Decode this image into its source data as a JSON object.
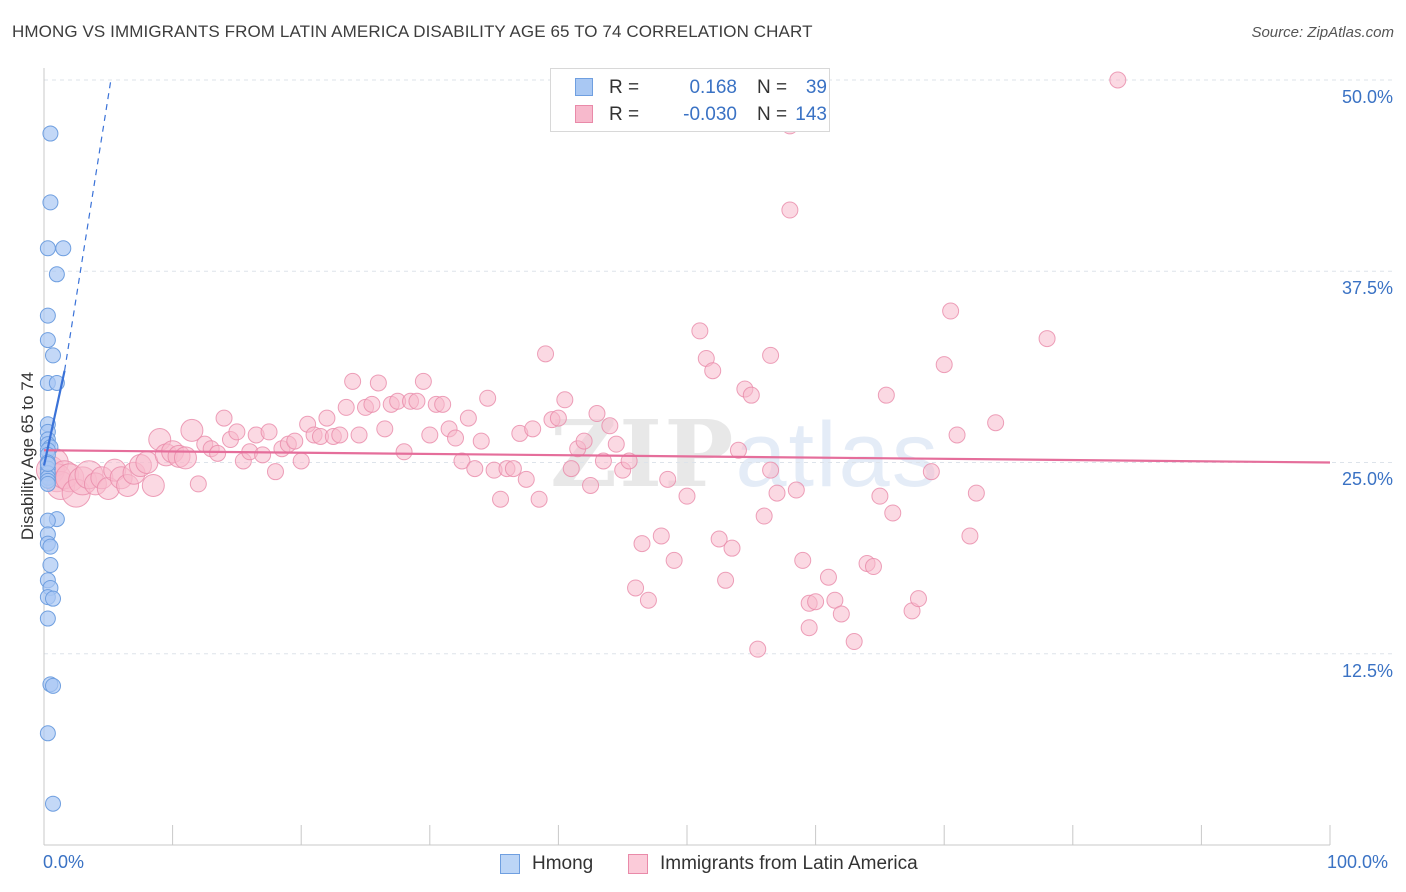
{
  "title": "HMONG VS IMMIGRANTS FROM LATIN AMERICA DISABILITY AGE 65 TO 74 CORRELATION CHART",
  "source": "Source: ZipAtlas.com",
  "watermark": {
    "zip": "ZIP",
    "atlas": "atlas"
  },
  "legend_top": {
    "rows": [
      {
        "r_label": "R =",
        "r_value": "0.168",
        "n_label": "N =",
        "n_value": "39"
      },
      {
        "r_label": "R =",
        "r_value": "-0.030",
        "n_label": "N =",
        "n_value": "143"
      }
    ]
  },
  "legend_bottom": {
    "series1": "Hmong",
    "series2": "Immigrants from Latin America"
  },
  "x_ticks": {
    "left": "0.0%",
    "right": "100.0%"
  },
  "y_ticks": [
    "50.0%",
    "37.5%",
    "25.0%",
    "12.5%"
  ],
  "colors": {
    "hmong_fill": "#a9c8f3",
    "hmong_stroke": "#6f9fe0",
    "hmong_line": "#3a72d8",
    "latin_fill": "#f7b9cc",
    "latin_stroke": "#e98aa9",
    "latin_line": "#e56e9b",
    "grid": "#dde3ea",
    "accent": "#3a72c4"
  },
  "chart_data": {
    "type": "scatter",
    "title": "HMONG VS IMMIGRANTS FROM LATIN AMERICA DISABILITY AGE 65 TO 74 CORRELATION CHART",
    "xlabel": "",
    "ylabel": "Disability Age 65 to 74",
    "xlim": [
      0,
      100
    ],
    "ylim": [
      0,
      52.5
    ],
    "y_gridlines": [
      12.5,
      25.0,
      37.5,
      50.0
    ],
    "series": [
      {
        "name": "Hmong",
        "r": 0.168,
        "n": 39,
        "trend": {
          "x0": 0,
          "y0": 24.8,
          "x1": 1.6,
          "y1": 31.0,
          "dashed_to_x": 5.2,
          "dashed_to_y": 50.0
        },
        "points": [
          [
            0.5,
            46.5
          ],
          [
            0.5,
            42.0
          ],
          [
            0.3,
            39.0
          ],
          [
            1.5,
            39.0
          ],
          [
            1.0,
            37.3
          ],
          [
            0.3,
            34.6
          ],
          [
            0.3,
            33.0
          ],
          [
            0.7,
            32.0
          ],
          [
            0.3,
            30.2
          ],
          [
            1.0,
            30.2
          ],
          [
            0.3,
            27.5
          ],
          [
            0.3,
            27.0
          ],
          [
            0.3,
            26.5
          ],
          [
            0.3,
            26.2
          ],
          [
            0.5,
            26.0
          ],
          [
            0.3,
            25.8
          ],
          [
            0.3,
            25.5
          ],
          [
            0.3,
            25.0
          ],
          [
            0.3,
            24.6
          ],
          [
            0.3,
            24.3
          ],
          [
            0.3,
            24.0
          ],
          [
            0.3,
            23.8
          ],
          [
            1.0,
            21.3
          ],
          [
            0.3,
            21.2
          ],
          [
            0.3,
            20.3
          ],
          [
            0.3,
            19.7
          ],
          [
            0.5,
            19.5
          ],
          [
            0.5,
            18.3
          ],
          [
            0.3,
            17.3
          ],
          [
            0.5,
            16.8
          ],
          [
            0.3,
            16.2
          ],
          [
            0.7,
            16.1
          ],
          [
            0.3,
            14.8
          ],
          [
            0.5,
            10.5
          ],
          [
            0.7,
            10.4
          ],
          [
            0.3,
            7.3
          ],
          [
            0.7,
            2.7
          ],
          [
            0.3,
            23.6
          ],
          [
            0.3,
            24.9
          ]
        ]
      },
      {
        "name": "Immigrants from Latin America",
        "r": -0.03,
        "n": 143,
        "trend": {
          "x0": 0,
          "y0": 25.8,
          "x1": 100,
          "y1": 25.0
        },
        "points": [
          [
            0.5,
            24.5
          ],
          [
            0.8,
            25.0
          ],
          [
            1.0,
            24.0
          ],
          [
            1.3,
            23.5
          ],
          [
            1.6,
            24.2
          ],
          [
            2.0,
            24.0
          ],
          [
            2.5,
            23.0
          ],
          [
            3.0,
            23.8
          ],
          [
            3.5,
            24.2
          ],
          [
            4.0,
            23.6
          ],
          [
            4.5,
            24.0
          ],
          [
            5.0,
            23.3
          ],
          [
            5.5,
            24.5
          ],
          [
            6.0,
            24.0
          ],
          [
            6.5,
            23.5
          ],
          [
            7.0,
            24.3
          ],
          [
            7.5,
            24.8
          ],
          [
            8.0,
            25.0
          ],
          [
            8.5,
            23.5
          ],
          [
            9.0,
            26.5
          ],
          [
            9.5,
            25.5
          ],
          [
            10.0,
            25.7
          ],
          [
            10.5,
            25.4
          ],
          [
            11.0,
            25.3
          ],
          [
            11.5,
            27.1
          ],
          [
            12.0,
            23.6
          ],
          [
            12.5,
            26.2
          ],
          [
            13.0,
            25.9
          ],
          [
            13.5,
            25.6
          ],
          [
            14.0,
            27.9
          ],
          [
            14.5,
            26.5
          ],
          [
            15.0,
            27.0
          ],
          [
            15.5,
            25.1
          ],
          [
            16.0,
            25.7
          ],
          [
            16.5,
            26.8
          ],
          [
            17.0,
            25.5
          ],
          [
            17.5,
            27.0
          ],
          [
            18.0,
            24.4
          ],
          [
            18.5,
            25.9
          ],
          [
            19.0,
            26.2
          ],
          [
            19.5,
            26.4
          ],
          [
            20.0,
            25.1
          ],
          [
            20.5,
            27.5
          ],
          [
            21.0,
            26.8
          ],
          [
            21.5,
            26.7
          ],
          [
            22.0,
            27.9
          ],
          [
            22.5,
            26.7
          ],
          [
            23.0,
            26.8
          ],
          [
            23.5,
            28.6
          ],
          [
            24.0,
            30.3
          ],
          [
            24.5,
            26.8
          ],
          [
            25.0,
            28.6
          ],
          [
            25.5,
            28.8
          ],
          [
            26.0,
            30.2
          ],
          [
            26.5,
            27.2
          ],
          [
            27.0,
            28.8
          ],
          [
            27.5,
            29.0
          ],
          [
            28.0,
            25.7
          ],
          [
            28.5,
            29.0
          ],
          [
            29.0,
            29.0
          ],
          [
            29.5,
            30.3
          ],
          [
            30.0,
            26.8
          ],
          [
            30.5,
            28.8
          ],
          [
            31.0,
            28.8
          ],
          [
            31.5,
            27.2
          ],
          [
            32.0,
            26.6
          ],
          [
            32.5,
            25.1
          ],
          [
            33.0,
            27.9
          ],
          [
            33.5,
            24.6
          ],
          [
            34.0,
            26.4
          ],
          [
            34.5,
            29.2
          ],
          [
            35.0,
            24.5
          ],
          [
            35.5,
            22.6
          ],
          [
            36.0,
            24.6
          ],
          [
            36.5,
            24.6
          ],
          [
            37.0,
            26.9
          ],
          [
            37.5,
            23.9
          ],
          [
            38.0,
            27.2
          ],
          [
            38.5,
            22.6
          ],
          [
            39.0,
            32.1
          ],
          [
            39.5,
            27.8
          ],
          [
            40.0,
            27.9
          ],
          [
            40.5,
            29.1
          ],
          [
            41.0,
            24.6
          ],
          [
            41.5,
            25.9
          ],
          [
            42.0,
            26.4
          ],
          [
            42.5,
            23.5
          ],
          [
            43.0,
            28.2
          ],
          [
            43.5,
            25.1
          ],
          [
            44.0,
            27.4
          ],
          [
            44.5,
            26.2
          ],
          [
            45.0,
            24.5
          ],
          [
            45.5,
            25.1
          ],
          [
            46.0,
            16.8
          ],
          [
            46.5,
            19.7
          ],
          [
            47.0,
            16.0
          ],
          [
            48.0,
            20.2
          ],
          [
            48.5,
            23.9
          ],
          [
            49.0,
            18.6
          ],
          [
            50.0,
            22.8
          ],
          [
            51.0,
            33.6
          ],
          [
            51.5,
            31.8
          ],
          [
            52.0,
            31.0
          ],
          [
            52.5,
            20.0
          ],
          [
            53.0,
            17.3
          ],
          [
            53.5,
            19.4
          ],
          [
            54.0,
            25.8
          ],
          [
            54.5,
            29.8
          ],
          [
            55.0,
            29.4
          ],
          [
            55.5,
            12.8
          ],
          [
            56.0,
            21.5
          ],
          [
            56.5,
            32.0
          ],
          [
            56.5,
            24.5
          ],
          [
            57.0,
            23.0
          ],
          [
            58.0,
            41.5
          ],
          [
            58.5,
            23.2
          ],
          [
            59.0,
            18.6
          ],
          [
            59.5,
            14.2
          ],
          [
            59.5,
            15.8
          ],
          [
            60.0,
            15.9
          ],
          [
            61.0,
            17.5
          ],
          [
            61.5,
            16.0
          ],
          [
            62.0,
            15.1
          ],
          [
            63.0,
            13.3
          ],
          [
            64.0,
            18.4
          ],
          [
            64.5,
            18.2
          ],
          [
            65.0,
            22.8
          ],
          [
            65.5,
            29.4
          ],
          [
            66.0,
            21.7
          ],
          [
            67.5,
            15.3
          ],
          [
            68.0,
            16.1
          ],
          [
            69.0,
            24.4
          ],
          [
            70.0,
            31.4
          ],
          [
            70.5,
            34.9
          ],
          [
            71.0,
            26.8
          ],
          [
            72.0,
            20.2
          ],
          [
            72.5,
            23.0
          ],
          [
            74.0,
            27.6
          ],
          [
            78.0,
            33.1
          ],
          [
            83.5,
            50.0
          ],
          [
            58.0,
            47.0
          ]
        ]
      }
    ]
  }
}
